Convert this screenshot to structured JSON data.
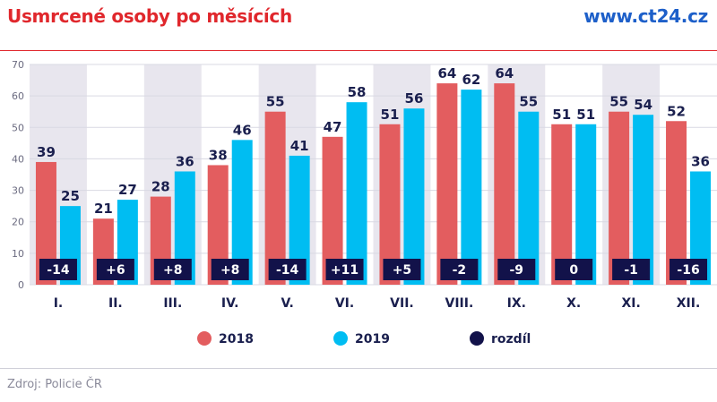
{
  "header": {
    "title": "Usmrcené osoby po měsících",
    "brand": "www.ct24.cz"
  },
  "footer": {
    "source": "Zdroj: Policie ČR"
  },
  "colors": {
    "series_2018": "#e35d5f",
    "series_2019": "#00bdf2",
    "diff": "#12124a",
    "shade": "#e8e6ee",
    "grid": "#d9d9e3"
  },
  "chart_data": {
    "type": "bar",
    "title": "Usmrcené osoby po měsících",
    "categories": [
      "I.",
      "II.",
      "III.",
      "IV.",
      "V.",
      "VI.",
      "VII.",
      "VIII.",
      "IX.",
      "X.",
      "XI.",
      "XII."
    ],
    "series": [
      {
        "name": "2018",
        "values": [
          39,
          21,
          28,
          38,
          55,
          47,
          51,
          64,
          64,
          51,
          55,
          52
        ]
      },
      {
        "name": "2019",
        "values": [
          25,
          27,
          36,
          46,
          41,
          58,
          56,
          62,
          55,
          51,
          54,
          36
        ]
      }
    ],
    "diff": {
      "name": "rozdíl",
      "labels": [
        "-14",
        "+6",
        "+8",
        "+8",
        "-14",
        "+11",
        "+5",
        "-2",
        "-9",
        "0",
        "-1",
        "-16"
      ]
    },
    "yticks": [
      0,
      10,
      20,
      30,
      40,
      50,
      60,
      70
    ],
    "ylim": [
      0,
      70
    ],
    "grid": true,
    "shaded_categories": [
      0,
      2,
      4,
      6,
      8,
      10
    ],
    "legend_position": "bottom"
  }
}
